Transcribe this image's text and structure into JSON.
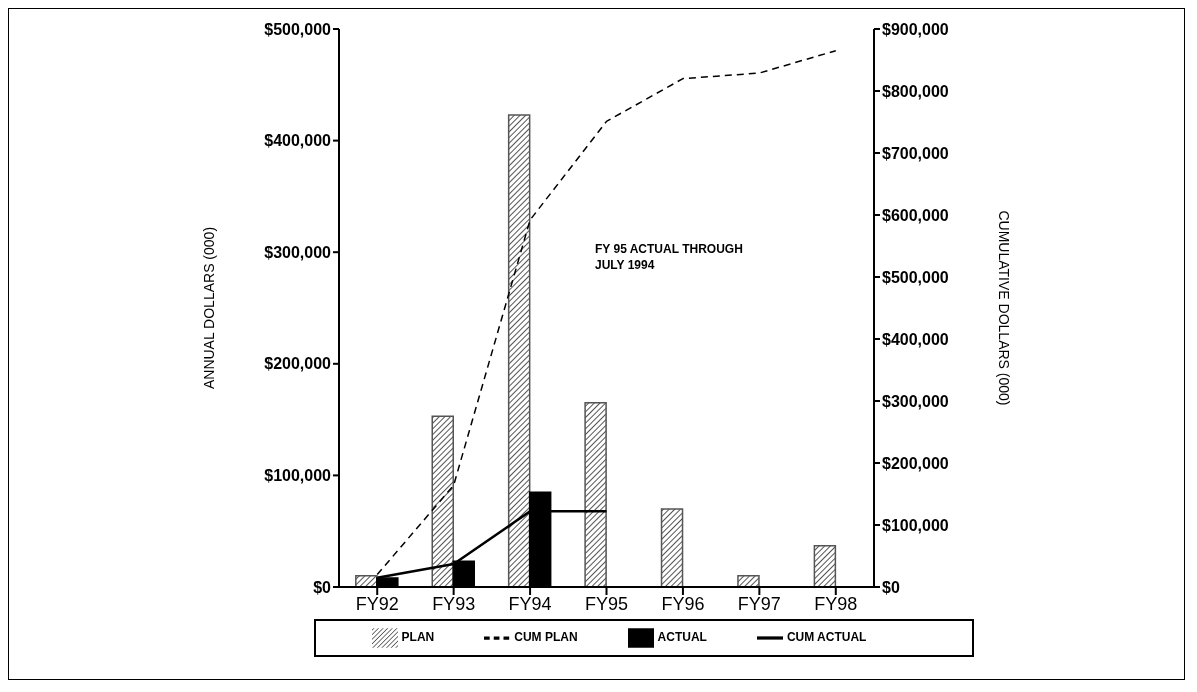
{
  "chart_data": {
    "type": "bar",
    "categories": [
      "FY92",
      "FY93",
      "FY94",
      "FY95",
      "FY96",
      "FY97",
      "FY98"
    ],
    "ylabel": "ANNUAL DOLLARS (000)",
    "y2label": "CUMULATIVE DOLLARS (000)",
    "series": [
      {
        "name": "PLAN",
        "color": "#555555",
        "values": [
          10000,
          153000,
          423000,
          165000,
          70000,
          10000,
          37000
        ]
      },
      {
        "name": "CUM PLAN",
        "type": "line",
        "axis": "y2",
        "line_style": "dashed",
        "color": "#000000",
        "values": [
          20000,
          164000,
          592000,
          751000,
          820000,
          829000,
          865000
        ]
      },
      {
        "name": "ACTUAL",
        "color": "#000000",
        "values": [
          8000,
          23000,
          85000,
          0,
          0,
          null,
          null
        ]
      },
      {
        "name": "CUM ACTUAL",
        "type": "line",
        "axis": "y2",
        "line_style": "solid",
        "color": "#000000",
        "values": [
          15000,
          37000,
          122000,
          122000,
          null,
          null,
          null
        ]
      }
    ],
    "ylim": [
      0,
      500000
    ],
    "yticks": [
      {
        "value": 0,
        "label": "$0"
      },
      {
        "value": 100000,
        "label": "$100,000"
      },
      {
        "value": 200000,
        "label": "$200,000"
      },
      {
        "value": 300000,
        "label": "$300,000"
      },
      {
        "value": 400000,
        "label": "$400,000"
      },
      {
        "value": 500000,
        "label": "$500,000"
      }
    ],
    "y2lim": [
      0,
      900000
    ],
    "y2ticks": [
      {
        "value": 0,
        "label": "$0"
      },
      {
        "value": 100000,
        "label": "$100,000"
      },
      {
        "value": 200000,
        "label": "$200,000"
      },
      {
        "value": 300000,
        "label": "$300,000"
      },
      {
        "value": 400000,
        "label": "$400,000"
      },
      {
        "value": 500000,
        "label": "$500,000"
      },
      {
        "value": 600000,
        "label": "$600,000"
      },
      {
        "value": 700000,
        "label": "$700,000"
      },
      {
        "value": 800000,
        "label": "$800,000"
      },
      {
        "value": 900000,
        "label": "$900,000"
      }
    ],
    "annotations": [
      "FY 95  ACTUAL THROUGH JULY 1994"
    ],
    "legend": "bottom",
    "grid": false,
    "marker": "none"
  }
}
